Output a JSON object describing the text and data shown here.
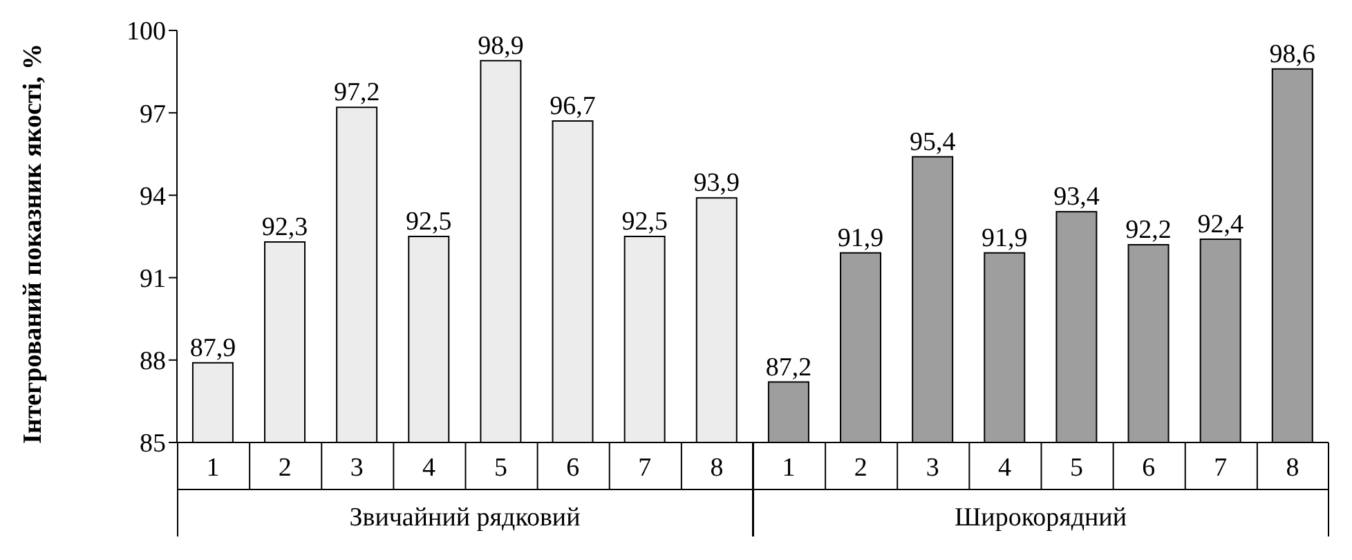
{
  "chart_data": {
    "type": "bar",
    "ylabel": "Інтегрований показник якості, %",
    "categories": [
      "1",
      "2",
      "3",
      "4",
      "5",
      "6",
      "7",
      "8",
      "1",
      "2",
      "3",
      "4",
      "5",
      "6",
      "7",
      "8"
    ],
    "series": [
      {
        "name": "Звичайний рядковий",
        "color": "#ececec",
        "values": [
          87.9,
          92.3,
          97.2,
          92.5,
          98.9,
          96.7,
          92.5,
          93.9,
          null,
          null,
          null,
          null,
          null,
          null,
          null,
          null
        ],
        "value_labels": [
          "87,9",
          "92,3",
          "97,2",
          "92,5",
          "98,9",
          "96,7",
          "92,5",
          "93,9",
          null,
          null,
          null,
          null,
          null,
          null,
          null,
          null
        ]
      },
      {
        "name": "Широкорядний",
        "color": "#9e9e9e",
        "values": [
          null,
          null,
          null,
          null,
          null,
          null,
          null,
          null,
          87.2,
          91.9,
          95.4,
          91.9,
          93.4,
          92.2,
          92.4,
          98.6
        ],
        "value_labels": [
          null,
          null,
          null,
          null,
          null,
          null,
          null,
          null,
          "87,2",
          "91,9",
          "95,4",
          "91,9",
          "93,4",
          "92,2",
          "92,4",
          "98,6"
        ]
      }
    ],
    "ylim": [
      85,
      100
    ],
    "yticks": [
      85,
      88,
      91,
      94,
      97,
      100
    ],
    "grid": false,
    "legend": "bottom"
  }
}
